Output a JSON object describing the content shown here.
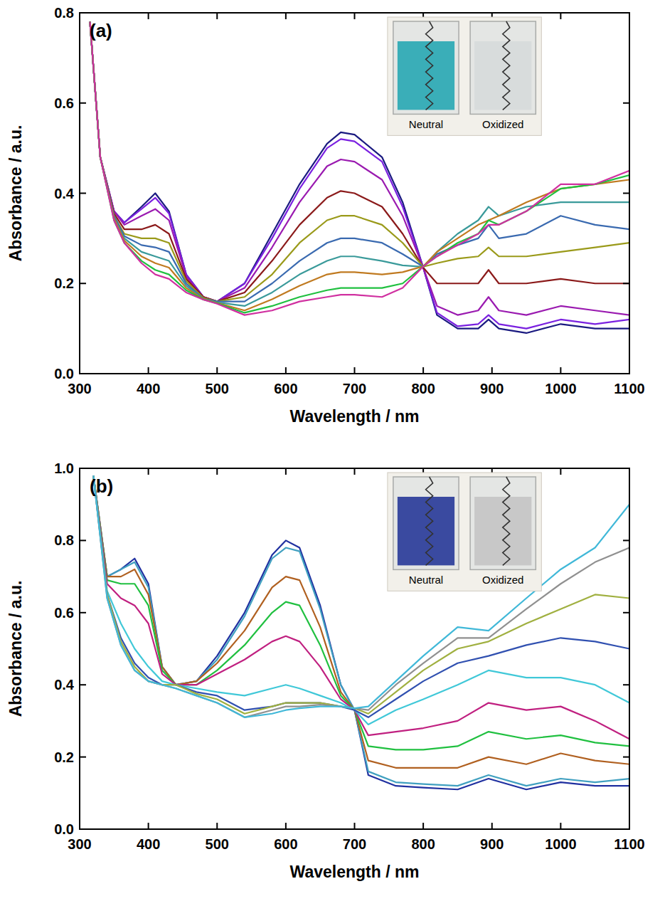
{
  "chart_data": [
    {
      "type": "line",
      "title": "(a)",
      "x_label": "Wavelength / nm",
      "y_label": "Absorbance / a.u.",
      "annotations": [
        "Neutral",
        "Oxidized"
      ],
      "xlim": [
        300,
        1100
      ],
      "ylim": [
        0,
        0.8
      ],
      "xticks": [
        300,
        400,
        500,
        600,
        700,
        800,
        900,
        1000,
        1100
      ],
      "yticks": [
        {
          "value": 0,
          "label": "0.0"
        },
        0.2,
        0.4,
        0.6,
        0.8
      ],
      "x": [
        315,
        330,
        350,
        365,
        390,
        410,
        430,
        455,
        480,
        500,
        540,
        580,
        620,
        660,
        680,
        700,
        740,
        770,
        800,
        820,
        850,
        880,
        895,
        910,
        950,
        1000,
        1050,
        1100
      ],
      "series": [
        {
          "color": "#1a1a80",
          "values": [
            0.78,
            0.48,
            0.36,
            0.335,
            0.37,
            0.4,
            0.36,
            0.22,
            0.17,
            0.16,
            0.2,
            0.31,
            0.42,
            0.51,
            0.535,
            0.53,
            0.48,
            0.38,
            0.235,
            0.13,
            0.1,
            0.1,
            0.12,
            0.1,
            0.09,
            0.11,
            0.1,
            0.1
          ]
        },
        {
          "color": "#7a20e0",
          "values": [
            0.78,
            0.48,
            0.36,
            0.335,
            0.365,
            0.39,
            0.355,
            0.22,
            0.17,
            0.16,
            0.2,
            0.3,
            0.41,
            0.5,
            0.52,
            0.515,
            0.47,
            0.37,
            0.235,
            0.135,
            0.105,
            0.11,
            0.13,
            0.11,
            0.1,
            0.12,
            0.11,
            0.12
          ]
        },
        {
          "color": "#9a1ab0",
          "values": [
            0.78,
            0.48,
            0.36,
            0.33,
            0.35,
            0.365,
            0.34,
            0.215,
            0.17,
            0.16,
            0.19,
            0.28,
            0.38,
            0.46,
            0.475,
            0.47,
            0.43,
            0.35,
            0.235,
            0.15,
            0.13,
            0.14,
            0.17,
            0.14,
            0.13,
            0.15,
            0.14,
            0.13
          ]
        },
        {
          "color": "#8b1a1a",
          "values": [
            0.78,
            0.48,
            0.355,
            0.32,
            0.32,
            0.33,
            0.31,
            0.21,
            0.17,
            0.16,
            0.18,
            0.25,
            0.33,
            0.39,
            0.405,
            0.4,
            0.37,
            0.31,
            0.235,
            0.2,
            0.2,
            0.2,
            0.23,
            0.2,
            0.2,
            0.21,
            0.2,
            0.2
          ]
        },
        {
          "color": "#9a9a1a",
          "values": [
            0.78,
            0.48,
            0.35,
            0.31,
            0.3,
            0.3,
            0.29,
            0.205,
            0.168,
            0.16,
            0.17,
            0.22,
            0.29,
            0.34,
            0.35,
            0.35,
            0.33,
            0.29,
            0.237,
            0.245,
            0.255,
            0.26,
            0.28,
            0.26,
            0.26,
            0.27,
            0.28,
            0.29
          ]
        },
        {
          "color": "#3a6ab0",
          "values": [
            0.78,
            0.48,
            0.35,
            0.305,
            0.285,
            0.28,
            0.27,
            0.2,
            0.166,
            0.16,
            0.16,
            0.2,
            0.25,
            0.29,
            0.3,
            0.3,
            0.29,
            0.265,
            0.237,
            0.265,
            0.285,
            0.3,
            0.33,
            0.3,
            0.31,
            0.35,
            0.33,
            0.32
          ]
        },
        {
          "color": "#3a9a9a",
          "values": [
            0.78,
            0.48,
            0.345,
            0.3,
            0.27,
            0.26,
            0.25,
            0.195,
            0.165,
            0.158,
            0.15,
            0.18,
            0.22,
            0.25,
            0.26,
            0.26,
            0.25,
            0.24,
            0.237,
            0.27,
            0.31,
            0.34,
            0.37,
            0.35,
            0.37,
            0.38,
            0.38,
            0.38
          ]
        },
        {
          "color": "#c07a20",
          "values": [
            0.78,
            0.48,
            0.345,
            0.295,
            0.26,
            0.245,
            0.235,
            0.19,
            0.165,
            0.157,
            0.14,
            0.165,
            0.195,
            0.22,
            0.225,
            0.225,
            0.22,
            0.225,
            0.238,
            0.27,
            0.3,
            0.33,
            0.34,
            0.35,
            0.38,
            0.41,
            0.42,
            0.43
          ]
        },
        {
          "color": "#20c040",
          "values": [
            0.78,
            0.48,
            0.34,
            0.29,
            0.25,
            0.23,
            0.22,
            0.185,
            0.164,
            0.156,
            0.135,
            0.15,
            0.17,
            0.185,
            0.19,
            0.19,
            0.19,
            0.2,
            0.238,
            0.26,
            0.29,
            0.31,
            0.34,
            0.33,
            0.36,
            0.41,
            0.42,
            0.44
          ]
        },
        {
          "color": "#d030a0",
          "values": [
            0.78,
            0.48,
            0.34,
            0.29,
            0.245,
            0.22,
            0.21,
            0.18,
            0.164,
            0.155,
            0.13,
            0.14,
            0.16,
            0.17,
            0.175,
            0.175,
            0.17,
            0.19,
            0.238,
            0.26,
            0.285,
            0.31,
            0.33,
            0.33,
            0.36,
            0.42,
            0.42,
            0.45
          ]
        }
      ]
    },
    {
      "type": "line",
      "title": "(b)",
      "x_label": "Wavelength / nm",
      "y_label": "Absorbance / a.u.",
      "annotations": [
        "Neutral",
        "Oxidized"
      ],
      "xlim": [
        300,
        1100
      ],
      "ylim": [
        0,
        1.0
      ],
      "xticks": [
        300,
        400,
        500,
        600,
        700,
        800,
        900,
        1000,
        1100
      ],
      "yticks": [
        {
          "value": 0,
          "label": "0.0"
        },
        0.2,
        0.4,
        0.6,
        0.8,
        {
          "value": 1.0,
          "label": "1.0"
        }
      ],
      "x": [
        320,
        340,
        360,
        380,
        400,
        420,
        440,
        470,
        500,
        540,
        580,
        600,
        620,
        650,
        680,
        700,
        720,
        760,
        800,
        850,
        895,
        950,
        1000,
        1050,
        1100
      ],
      "series": [
        {
          "color": "#2030a0",
          "values": [
            0.98,
            0.7,
            0.72,
            0.75,
            0.68,
            0.45,
            0.4,
            0.41,
            0.48,
            0.6,
            0.76,
            0.8,
            0.78,
            0.62,
            0.4,
            0.33,
            0.15,
            0.12,
            0.115,
            0.11,
            0.14,
            0.11,
            0.13,
            0.12,
            0.12
          ]
        },
        {
          "color": "#40a0c0",
          "values": [
            0.98,
            0.7,
            0.72,
            0.74,
            0.67,
            0.45,
            0.4,
            0.41,
            0.47,
            0.59,
            0.75,
            0.78,
            0.77,
            0.61,
            0.4,
            0.33,
            0.16,
            0.13,
            0.125,
            0.12,
            0.15,
            0.12,
            0.14,
            0.13,
            0.14
          ]
        },
        {
          "color": "#b06020",
          "values": [
            0.98,
            0.7,
            0.7,
            0.72,
            0.65,
            0.45,
            0.4,
            0.41,
            0.46,
            0.55,
            0.67,
            0.7,
            0.69,
            0.56,
            0.38,
            0.33,
            0.19,
            0.17,
            0.17,
            0.17,
            0.2,
            0.18,
            0.21,
            0.19,
            0.18
          ]
        },
        {
          "color": "#20c040",
          "values": [
            0.98,
            0.69,
            0.68,
            0.68,
            0.62,
            0.44,
            0.4,
            0.4,
            0.44,
            0.51,
            0.6,
            0.63,
            0.62,
            0.51,
            0.37,
            0.33,
            0.23,
            0.22,
            0.22,
            0.23,
            0.27,
            0.25,
            0.26,
            0.24,
            0.23
          ]
        },
        {
          "color": "#c02080",
          "values": [
            0.98,
            0.68,
            0.64,
            0.62,
            0.57,
            0.43,
            0.4,
            0.4,
            0.43,
            0.47,
            0.52,
            0.535,
            0.52,
            0.45,
            0.36,
            0.33,
            0.26,
            0.27,
            0.28,
            0.3,
            0.35,
            0.33,
            0.34,
            0.3,
            0.25
          ]
        },
        {
          "color": "#40c8d8",
          "values": [
            0.98,
            0.66,
            0.57,
            0.5,
            0.45,
            0.41,
            0.4,
            0.39,
            0.38,
            0.37,
            0.39,
            0.4,
            0.39,
            0.37,
            0.35,
            0.33,
            0.29,
            0.33,
            0.36,
            0.4,
            0.44,
            0.42,
            0.42,
            0.4,
            0.35
          ]
        },
        {
          "color": "#3050b0",
          "values": [
            0.98,
            0.65,
            0.53,
            0.46,
            0.42,
            0.4,
            0.4,
            0.38,
            0.37,
            0.33,
            0.34,
            0.35,
            0.35,
            0.35,
            0.34,
            0.33,
            0.31,
            0.36,
            0.41,
            0.46,
            0.48,
            0.51,
            0.53,
            0.52,
            0.5
          ]
        },
        {
          "color": "#a0b040",
          "values": [
            0.98,
            0.65,
            0.52,
            0.45,
            0.41,
            0.4,
            0.4,
            0.375,
            0.36,
            0.32,
            0.34,
            0.35,
            0.35,
            0.35,
            0.34,
            0.335,
            0.32,
            0.38,
            0.44,
            0.5,
            0.52,
            0.57,
            0.61,
            0.65,
            0.64
          ]
        },
        {
          "color": "#909090",
          "values": [
            0.98,
            0.64,
            0.51,
            0.44,
            0.41,
            0.4,
            0.39,
            0.37,
            0.35,
            0.31,
            0.33,
            0.34,
            0.34,
            0.345,
            0.34,
            0.335,
            0.33,
            0.4,
            0.46,
            0.53,
            0.53,
            0.61,
            0.68,
            0.74,
            0.78
          ]
        },
        {
          "color": "#40b8d8",
          "values": [
            0.98,
            0.64,
            0.51,
            0.44,
            0.41,
            0.4,
            0.39,
            0.37,
            0.35,
            0.31,
            0.32,
            0.33,
            0.335,
            0.34,
            0.34,
            0.335,
            0.34,
            0.41,
            0.48,
            0.56,
            0.55,
            0.64,
            0.72,
            0.78,
            0.9
          ]
        }
      ]
    }
  ]
}
